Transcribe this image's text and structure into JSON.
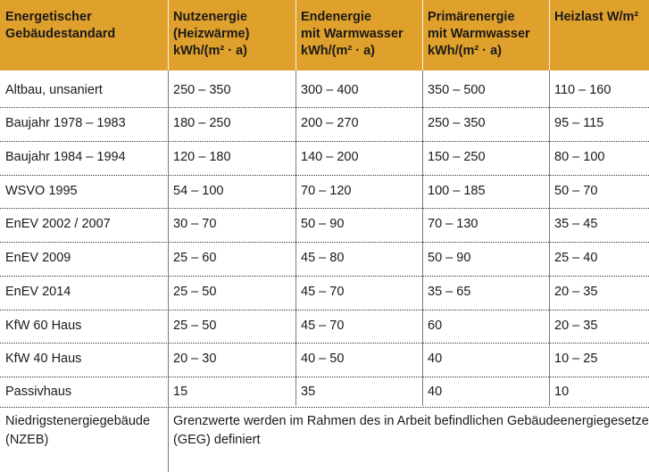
{
  "header": {
    "col1": [
      "Energetischer",
      "Gebäudestandard"
    ],
    "col2": [
      "Nutzenergie",
      "(Heizwärme)",
      "kWh/(m² · a)"
    ],
    "col3": [
      "Endenergie",
      "mit Warmwasser",
      "kWh/(m² · a)"
    ],
    "col4": [
      "Primärenergie",
      "mit Warmwasser",
      "kWh/(m² · a)"
    ],
    "col5": [
      "Heizlast W/m²"
    ]
  },
  "rows": [
    [
      "Altbau, unsaniert",
      "250 – 350",
      "300 – 400",
      "350 – 500",
      "110 – 160"
    ],
    [
      "Baujahr 1978 – 1983",
      "180 – 250",
      "200 – 270",
      "250 – 350",
      "95 – 115"
    ],
    [
      "Baujahr 1984 – 1994",
      "120 – 180",
      "140 – 200",
      "150 – 250",
      "80 – 100"
    ],
    [
      "WSVO 1995",
      "54 – 100",
      "70 – 120",
      "100 – 185",
      "50 – 70"
    ],
    [
      "EnEV 2002 / 2007",
      "30 – 70",
      "50 – 90",
      "70 – 130",
      "35 – 45"
    ],
    [
      "EnEV 2009",
      "25 – 60",
      "45 – 80",
      "50 – 90",
      "25 – 40"
    ],
    [
      "EnEV 2014",
      "25 – 50",
      "45 – 70",
      "35 – 65",
      "20 – 35"
    ],
    [
      "KfW 60 Haus",
      "25 – 50",
      "45 – 70",
      "60",
      "20 – 35"
    ],
    [
      "KfW 40 Haus",
      "20 – 30",
      "40 – 50",
      "40",
      "10 – 25"
    ],
    [
      "Passivhaus",
      "15",
      "35",
      "40",
      "10"
    ]
  ],
  "last_row": {
    "label": [
      "Niedrigstenergiegebäude",
      "(NZEB)"
    ],
    "text": [
      "Grenzwerte werden im Rahmen des in Arbeit befindlichen Gebäudeenergiegesetzes",
      "(GEG) definiert"
    ]
  }
}
